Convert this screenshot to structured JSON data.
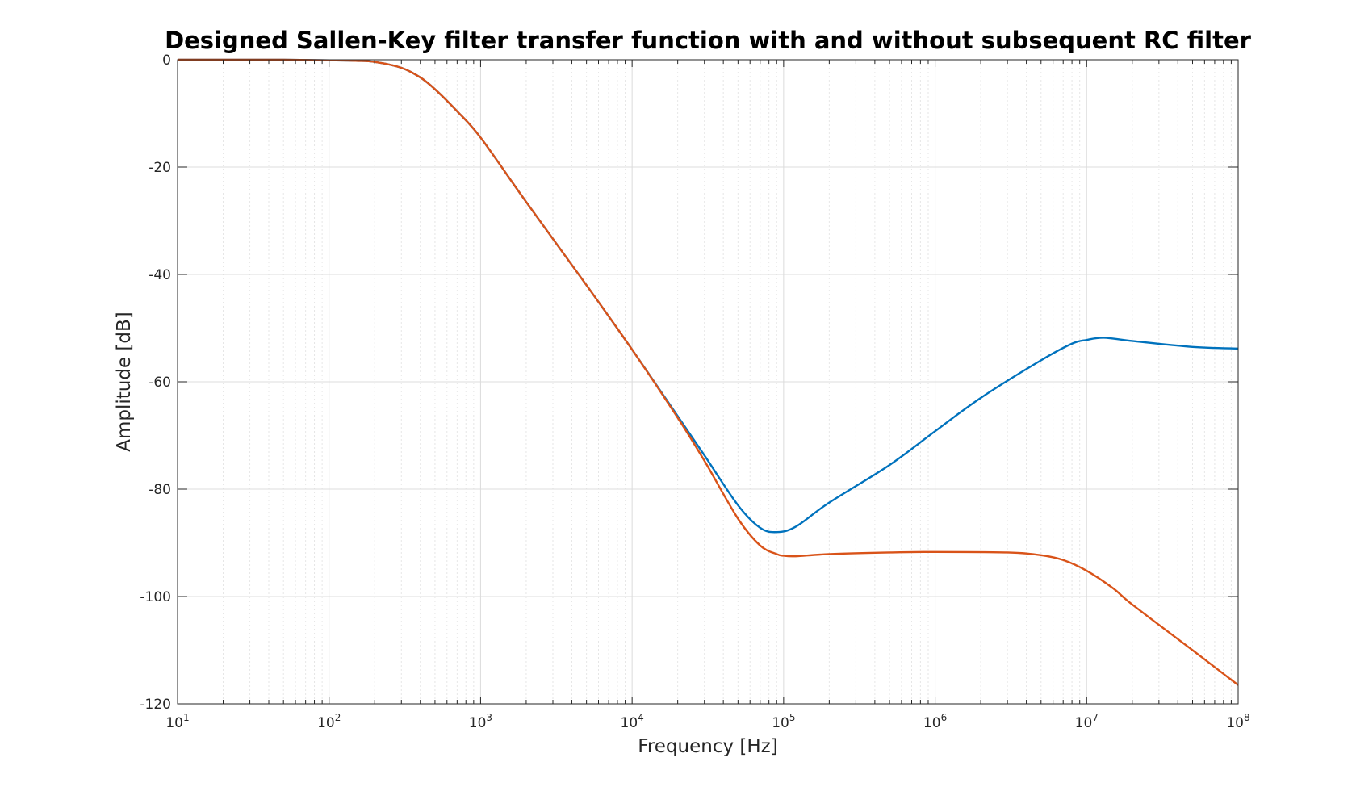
{
  "chart_data": {
    "type": "line",
    "title": "Designed Sallen-Key filter transfer function with and without subsequent RC filter",
    "xlabel": "Frequency [Hz]",
    "ylabel": "Amplitude [dB]",
    "xscale": "log",
    "xlim": [
      10,
      100000000
    ],
    "ylim": [
      -120,
      0
    ],
    "grid": "on",
    "legend": "none",
    "xticks": [
      {
        "base": "10",
        "exp": "1",
        "value": 10
      },
      {
        "base": "10",
        "exp": "2",
        "value": 100
      },
      {
        "base": "10",
        "exp": "3",
        "value": 1000
      },
      {
        "base": "10",
        "exp": "4",
        "value": 10000
      },
      {
        "base": "10",
        "exp": "5",
        "value": 100000
      },
      {
        "base": "10",
        "exp": "6",
        "value": 1000000
      },
      {
        "base": "10",
        "exp": "7",
        "value": 10000000
      },
      {
        "base": "10",
        "exp": "8",
        "value": 100000000
      }
    ],
    "yticks": [
      {
        "label": "0",
        "value": 0
      },
      {
        "label": "-20",
        "value": -20
      },
      {
        "label": "-40",
        "value": -40
      },
      {
        "label": "-60",
        "value": -60
      },
      {
        "label": "-80",
        "value": -80
      },
      {
        "label": "-100",
        "value": -100
      },
      {
        "label": "-120",
        "value": -120
      }
    ],
    "series": [
      {
        "color": "#0072BD",
        "x": [
          10,
          20,
          50,
          100,
          150,
          200,
          300,
          400,
          500,
          700,
          1000,
          2000,
          5000,
          10000,
          20000,
          30000,
          50000,
          70000,
          90000,
          120000,
          200000,
          500000,
          1000000,
          2000000,
          5000000,
          8000000,
          10000000,
          13000000,
          20000000,
          50000000,
          100000000
        ],
        "y": [
          0,
          0,
          0,
          -0.1,
          -0.2,
          -0.4,
          -1.5,
          -3.3,
          -5.5,
          -9.6,
          -14.5,
          -26.5,
          -42,
          -54,
          -66.4,
          -73.7,
          -83,
          -87.2,
          -88,
          -87,
          -82.5,
          -75.5,
          -69.2,
          -63,
          -56,
          -52.9,
          -52.2,
          -51.8,
          -52.4,
          -53.5,
          -53.8
        ]
      },
      {
        "color": "#D95319",
        "x": [
          10,
          20,
          50,
          100,
          150,
          200,
          300,
          400,
          500,
          700,
          1000,
          2000,
          5000,
          10000,
          20000,
          30000,
          50000,
          70000,
          90000,
          100000,
          120000,
          200000,
          500000,
          1000000,
          3000000,
          5000000,
          7000000,
          10000000,
          15000000,
          20000000,
          50000000,
          100000000
        ],
        "y": [
          0,
          0,
          0,
          -0.1,
          -0.2,
          -0.4,
          -1.5,
          -3.3,
          -5.5,
          -9.6,
          -14.5,
          -26.5,
          -42,
          -54,
          -66.7,
          -74.7,
          -85.5,
          -90.5,
          -92.1,
          -92.4,
          -92.5,
          -92.1,
          -91.8,
          -91.7,
          -91.8,
          -92.3,
          -93.2,
          -95.2,
          -98.5,
          -101.5,
          -110,
          -116.5
        ]
      }
    ]
  }
}
